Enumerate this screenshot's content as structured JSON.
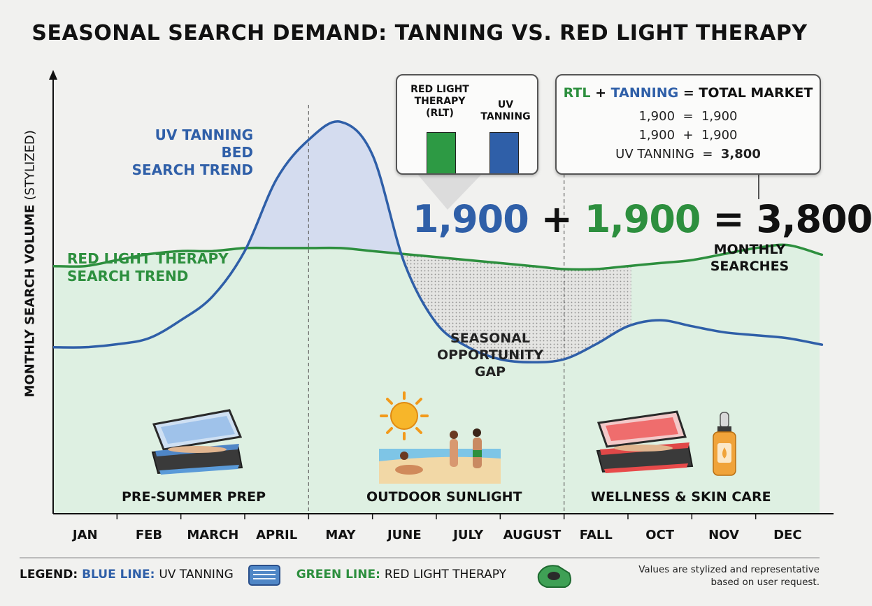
{
  "chart_data": {
    "type": "line",
    "title": "SEASONAL SEARCH DEMAND: TANNING VS. RED LIGHT THERAPY",
    "ylabel_main": "MONTHLY SEARCH VOLUME",
    "ylabel_note": "(STYLIZED)",
    "categories": [
      "JAN",
      "FEB",
      "MARCH",
      "APRIL",
      "MAY",
      "JUNE",
      "JULY",
      "AUGUST",
      "FALL",
      "OCT",
      "NOV",
      "DEC"
    ],
    "ylim": [
      0,
      100
    ],
    "grid": false,
    "series": [
      {
        "name": "UV TANNING",
        "label_line1": "UV TANNING BED",
        "label_line2": "SEARCH TREND",
        "color": "#2f5fa8",
        "x": [
          0,
          0.5,
          1,
          1.5,
          2,
          2.5,
          3,
          3.5,
          4,
          4.5,
          5,
          5.5,
          6,
          6.5,
          7,
          7.5,
          8,
          8.5,
          9,
          9.5,
          10,
          10.5,
          11,
          11.5
        ],
        "values": [
          24,
          25,
          27,
          33,
          41,
          56,
          80,
          93,
          99,
          88,
          52,
          32,
          24,
          20,
          19,
          20,
          25,
          31,
          33,
          31,
          29,
          28,
          27,
          25
        ]
      },
      {
        "name": "RED LIGHT THERAPY",
        "label_line1": "RED LIGHT THERAPY",
        "label_line2": "SEARCH TREND",
        "color": "#2d8f3e",
        "x": [
          0,
          0.5,
          1,
          1.5,
          2,
          2.5,
          3,
          3.5,
          4,
          4.5,
          5,
          5.5,
          6,
          6.5,
          7,
          7.5,
          8,
          8.5,
          9,
          9.5,
          10,
          10.5,
          11,
          11.5
        ],
        "values": [
          51,
          53,
          55,
          56,
          56,
          57,
          57,
          57,
          57,
          56,
          55,
          54,
          53,
          52,
          51,
          50,
          50,
          51,
          52,
          53,
          55,
          57,
          58,
          55
        ]
      }
    ],
    "gap_label": [
      "SEASONAL",
      "OPPORTUNITY",
      "GAP"
    ],
    "section_labels": [
      "PRE-SUMMER PREP",
      "OUTDOOR SUNLIGHT",
      "WELLNESS & SKIN CARE"
    ]
  },
  "bar_box": {
    "rlt_label": [
      "RED LIGHT",
      "THERAPY",
      "(RLT)"
    ],
    "uv_label": [
      "UV",
      "TANNING"
    ],
    "rlt_value": 1900,
    "uv_value": 1900
  },
  "equation_box": {
    "head_rtl": "RTL",
    "head_plus": "+",
    "head_tanning": "TANNING",
    "head_eq": "=",
    "head_total": "TOTAL MARKET",
    "row1": "1,900  =  1,900",
    "row2": "1,900  +  1,900",
    "row3_left": "UV TANNING  =  ",
    "row3_total": "3,800"
  },
  "big_equation": {
    "a": "1,900",
    "plus": "+",
    "b": "1,900",
    "eq": "=",
    "total": "3,800",
    "caption_line1": "MONTHLY",
    "caption_line2": "SEARCHES"
  },
  "legend": {
    "lead": "LEGEND:",
    "blue_key": "BLUE LINE:",
    "blue_name": "UV TANNING",
    "green_key": "GREEN LINE:",
    "green_name": "RED LIGHT THERAPY",
    "note_line1": "Values are stylized and representative",
    "note_line2": "based on user request."
  },
  "colors": {
    "blue": "#2f5fa8",
    "green": "#2d8f3e",
    "gap_fill": "#d6d6d6",
    "blue_fill": "#d4dcef",
    "green_fill": "#dcefe0"
  }
}
